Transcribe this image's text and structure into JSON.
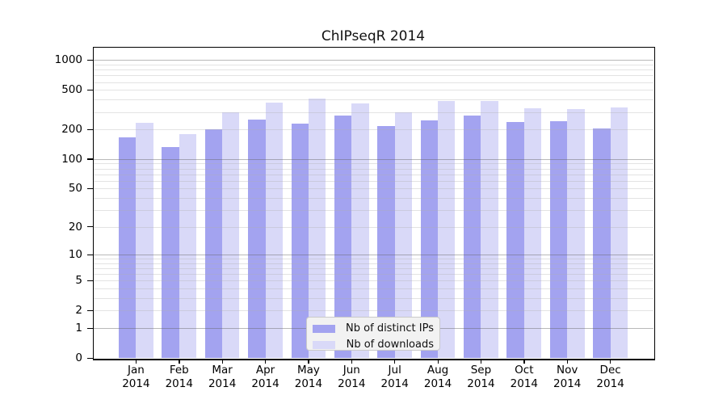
{
  "title": "ChIPseqR 2014",
  "chart_data": {
    "type": "bar",
    "title": "ChIPseqR 2014",
    "xlabel": "",
    "ylabel": "",
    "categories": [
      "Jan",
      "Feb",
      "Mar",
      "Apr",
      "May",
      "Jun",
      "Jul",
      "Aug",
      "Sep",
      "Oct",
      "Nov",
      "Dec"
    ],
    "x_tick_year": "2014",
    "series": [
      {
        "name": "Nb of distinct IPs",
        "color": "#a3a3f0",
        "values": [
          166,
          132,
          202,
          252,
          230,
          278,
          214,
          248,
          277,
          235,
          240,
          205
        ]
      },
      {
        "name": "Nb of downloads",
        "color": "#d9d9f8",
        "values": [
          234,
          178,
          296,
          370,
          412,
          363,
          296,
          386,
          386,
          324,
          322,
          330
        ]
      }
    ],
    "y_scale": "log10(1+x)",
    "y_ticks": [
      1000,
      500,
      200,
      100,
      50,
      20,
      10,
      5,
      2,
      1,
      0
    ],
    "ylim": [
      0,
      1360
    ],
    "grid": {
      "major_decades": [
        1,
        10,
        100,
        1000
      ],
      "minor_lines": true,
      "grid_on": true
    },
    "legend_position": "lower center",
    "colors": {
      "bar_ips": "#a3a3f0",
      "bar_downloads": "#d9d9f8",
      "grid_major": "#bbbbbb",
      "grid_minor": "#e6e6e6",
      "axis": "#000000",
      "legend_bg": "#f2f2f2",
      "legend_border": "#c9c9c9"
    }
  }
}
